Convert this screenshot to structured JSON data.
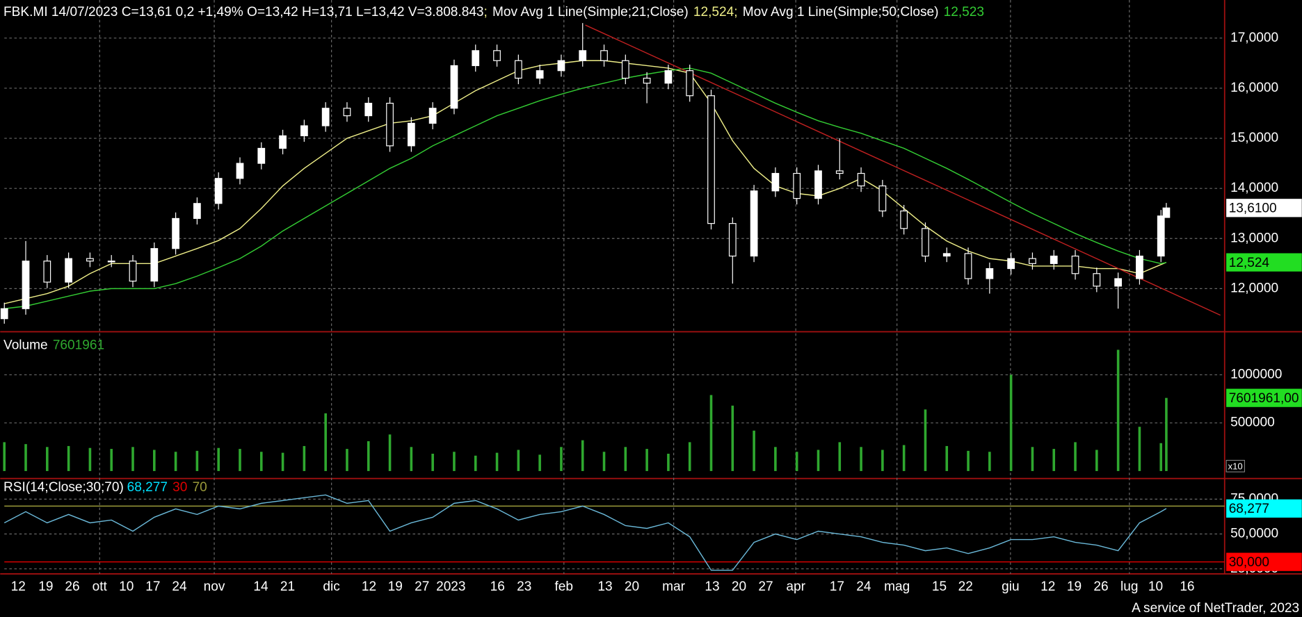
{
  "chart_data": {
    "type": "candlestick",
    "title": "FBK.MI 14/07/2023 C=13,61 0,2 +1,49% O=13,42 H=13,71 L=13,42 V=3.808.843",
    "separator": ";",
    "x": [
      0,
      4,
      8,
      12,
      16,
      20,
      24,
      28,
      32,
      36,
      40,
      44,
      48,
      52,
      56,
      60,
      64,
      68,
      72,
      76,
      80,
      84,
      88,
      92,
      96,
      100,
      104,
      108,
      112,
      116,
      120,
      124,
      128,
      132,
      136,
      140,
      144,
      148,
      152,
      156,
      160,
      164,
      168,
      172,
      176,
      180,
      184,
      188,
      192,
      196,
      200,
      204,
      208,
      212,
      216,
      217
    ],
    "open": [
      11.4,
      11.6,
      12.55,
      12.13,
      12.6,
      12.55,
      12.55,
      12.15,
      12.8,
      13.4,
      13.7,
      14.2,
      14.5,
      14.8,
      15.05,
      15.25,
      15.6,
      15.45,
      15.7,
      14.85,
      15.3,
      15.6,
      16.45,
      16.75,
      16.55,
      16.2,
      16.35,
      16.55,
      16.75,
      16.55,
      16.2,
      16.1,
      16.35,
      15.85,
      13.3,
      12.65,
      13.95,
      14.3,
      13.8,
      14.35,
      14.3,
      14.05,
      13.55,
      13.2,
      12.65,
      12.7,
      12.2,
      12.4,
      12.6,
      12.5,
      12.65,
      12.3,
      12.05,
      12.2,
      12.65,
      13.42
    ],
    "high": [
      11.72,
      12.95,
      12.67,
      12.72,
      12.72,
      12.67,
      12.67,
      12.92,
      13.52,
      13.82,
      14.32,
      14.62,
      14.92,
      15.17,
      15.37,
      15.72,
      15.72,
      15.82,
      15.82,
      15.42,
      15.72,
      16.57,
      16.87,
      16.87,
      16.67,
      16.47,
      16.67,
      17.3,
      16.87,
      16.67,
      16.32,
      16.47,
      16.47,
      15.97,
      13.42,
      14.07,
      14.42,
      14.42,
      14.47,
      15.0,
      14.42,
      14.17,
      13.67,
      13.32,
      12.82,
      12.82,
      12.52,
      12.72,
      12.72,
      12.77,
      12.77,
      12.42,
      12.32,
      12.77,
      13.57,
      13.71
    ],
    "low": [
      11.3,
      11.48,
      12.01,
      12.01,
      12.43,
      12.43,
      12.03,
      12.03,
      12.68,
      13.28,
      13.58,
      14.08,
      14.38,
      14.68,
      14.93,
      15.13,
      15.33,
      15.33,
      14.73,
      14.73,
      15.18,
      15.48,
      16.33,
      16.43,
      16.08,
      16.08,
      16.23,
      16.43,
      16.43,
      16.08,
      15.7,
      15.98,
      15.73,
      13.18,
      12.1,
      12.53,
      13.83,
      13.68,
      13.68,
      14.18,
      13.93,
      13.43,
      13.08,
      12.53,
      12.53,
      12.08,
      11.9,
      12.28,
      12.38,
      12.38,
      12.18,
      11.93,
      11.6,
      12.08,
      12.53,
      13.42
    ],
    "close": [
      11.6,
      12.55,
      12.13,
      12.6,
      12.55,
      12.55,
      12.15,
      12.8,
      13.4,
      13.7,
      14.2,
      14.5,
      14.8,
      15.05,
      15.25,
      15.6,
      15.45,
      15.7,
      14.85,
      15.3,
      15.6,
      16.45,
      16.75,
      16.55,
      16.2,
      16.35,
      16.55,
      16.75,
      16.55,
      16.2,
      16.1,
      16.35,
      15.85,
      13.3,
      12.65,
      13.95,
      14.3,
      13.8,
      14.35,
      14.3,
      14.05,
      13.55,
      13.2,
      12.65,
      12.7,
      12.2,
      12.4,
      12.6,
      12.5,
      12.65,
      12.3,
      12.05,
      12.2,
      12.65,
      13.45,
      13.61
    ],
    "up_color": "#ffffff",
    "down_color": "#000000",
    "last_label": "13,6100",
    "series": [
      {
        "name": "Mov Avg 1 Line(Simple;21;Close)",
        "color": "#eeee88",
        "value_label": "12,524",
        "values": [
          11.7,
          11.8,
          11.9,
          12.05,
          12.3,
          12.5,
          12.5,
          12.5,
          12.65,
          12.8,
          12.96,
          13.2,
          13.6,
          14.05,
          14.4,
          14.7,
          15.0,
          15.15,
          15.3,
          15.35,
          15.45,
          15.7,
          15.95,
          16.15,
          16.35,
          16.45,
          16.5,
          16.55,
          16.55,
          16.5,
          16.45,
          16.4,
          16.3,
          15.7,
          14.95,
          14.4,
          14.05,
          13.9,
          13.85,
          14.0,
          14.2,
          13.95,
          13.6,
          13.25,
          12.95,
          12.75,
          12.6,
          12.55,
          12.45,
          12.45,
          12.45,
          12.4,
          12.4,
          12.3,
          12.48,
          12.524
        ]
      },
      {
        "name": "Mov Avg 1 Line(Simple;50;Close)",
        "color": "#33cc33",
        "value_label": "12,523",
        "values": [
          11.6,
          11.65,
          11.75,
          11.85,
          11.95,
          12.0,
          12.0,
          12.0,
          12.1,
          12.25,
          12.42,
          12.6,
          12.85,
          13.15,
          13.4,
          13.65,
          13.9,
          14.15,
          14.4,
          14.6,
          14.85,
          15.05,
          15.25,
          15.45,
          15.6,
          15.75,
          15.88,
          16.0,
          16.1,
          16.2,
          16.28,
          16.35,
          16.4,
          16.3,
          16.1,
          15.9,
          15.7,
          15.52,
          15.35,
          15.22,
          15.1,
          14.95,
          14.8,
          14.6,
          14.4,
          14.18,
          13.95,
          13.72,
          13.5,
          13.3,
          13.1,
          12.92,
          12.75,
          12.6,
          12.5,
          12.523
        ]
      }
    ],
    "trendline": {
      "color": "#c02020",
      "x": [
        108.5,
        227.1
      ],
      "values": [
        17.26,
        11.47
      ]
    },
    "xlim": [
      0,
      227.5
    ],
    "ylim": [
      11.14,
      17.76
    ],
    "yticks": [
      {
        "value": 12,
        "label": "12,0000"
      },
      {
        "value": 13,
        "label": "13,0000"
      },
      {
        "value": 14,
        "label": "14,0000"
      },
      {
        "value": 15,
        "label": "15,0000"
      },
      {
        "value": 16,
        "label": "16,0000"
      },
      {
        "value": 17,
        "label": "17,0000"
      }
    ],
    "xticks": [
      {
        "value": 2.6,
        "label": "12"
      },
      {
        "value": 7.75,
        "label": "19"
      },
      {
        "value": 12.7,
        "label": "26"
      },
      {
        "value": 17.8,
        "label": "ott"
      },
      {
        "value": 22.8,
        "label": "10"
      },
      {
        "value": 27.75,
        "label": "17"
      },
      {
        "value": 32.7,
        "label": "24"
      },
      {
        "value": 39.2,
        "label": "nov"
      },
      {
        "value": 47.9,
        "label": "14"
      },
      {
        "value": 52.9,
        "label": "21"
      },
      {
        "value": 61.1,
        "label": "dic"
      },
      {
        "value": 68.1,
        "label": "12"
      },
      {
        "value": 73.0,
        "label": "19"
      },
      {
        "value": 78.0,
        "label": "27"
      },
      {
        "value": 83.4,
        "label": "2023"
      },
      {
        "value": 92.1,
        "label": "16"
      },
      {
        "value": 97.1,
        "label": "23"
      },
      {
        "value": 104.5,
        "label": "feb"
      },
      {
        "value": 112.2,
        "label": "13"
      },
      {
        "value": 117.2,
        "label": "20"
      },
      {
        "value": 125.0,
        "label": "mar"
      },
      {
        "value": 132.2,
        "label": "13"
      },
      {
        "value": 137.2,
        "label": "20"
      },
      {
        "value": 142.2,
        "label": "27"
      },
      {
        "value": 147.8,
        "label": "apr"
      },
      {
        "value": 155.5,
        "label": "17"
      },
      {
        "value": 160.5,
        "label": "24"
      },
      {
        "value": 166.7,
        "label": "mag"
      },
      {
        "value": 174.6,
        "label": "15"
      },
      {
        "value": 179.5,
        "label": "22"
      },
      {
        "value": 187.9,
        "label": "giu"
      },
      {
        "value": 194.9,
        "label": "12"
      },
      {
        "value": 199.8,
        "label": "19"
      },
      {
        "value": 204.8,
        "label": "26"
      },
      {
        "value": 210.1,
        "label": "lug"
      },
      {
        "value": 215.0,
        "label": "10"
      },
      {
        "value": 220.9,
        "label": "16"
      }
    ],
    "grid": true,
    "volume": {
      "label": "Volume",
      "value_label": "7601961",
      "box_label": "7601961,00",
      "scale_label": "x10",
      "color": "#2fa82f",
      "values": [
        300000,
        280000,
        250000,
        260000,
        240000,
        230000,
        250000,
        220000,
        200000,
        210000,
        240000,
        230000,
        200000,
        190000,
        260000,
        600000,
        230000,
        310000,
        380000,
        250000,
        180000,
        200000,
        160000,
        190000,
        220000,
        170000,
        250000,
        320000,
        200000,
        250000,
        230000,
        180000,
        300000,
        790000,
        680000,
        420000,
        250000,
        200000,
        220000,
        300000,
        250000,
        220000,
        270000,
        640000,
        260000,
        210000,
        200000,
        1000000,
        250000,
        230000,
        300000,
        220000,
        1260000,
        460000,
        290000,
        760196
      ],
      "ylim": [
        0,
        1448000
      ],
      "yticks": [
        500000,
        1000000
      ]
    },
    "rsi": {
      "label": "RSI(14;Close;30;70)",
      "value_label": "68,277",
      "color": "#6ab8d8",
      "values": [
        58,
        66,
        58,
        64,
        58,
        60,
        52,
        62,
        68,
        64,
        70,
        68,
        72,
        74,
        76,
        78,
        72,
        74,
        52,
        58,
        62,
        72,
        74,
        68,
        60,
        64,
        66,
        70,
        64,
        56,
        54,
        58,
        48,
        24,
        24,
        44,
        50,
        46,
        52,
        50,
        48,
        44,
        42,
        38,
        40,
        36,
        40,
        46,
        46,
        48,
        44,
        42,
        38,
        58,
        66,
        68.277
      ],
      "ylim": [
        21.4,
        88
      ],
      "yticks": [
        {
          "value": 25,
          "label": "25,0000"
        },
        {
          "value": 50,
          "label": "50,0000"
        },
        {
          "value": 75,
          "label": "75,0000"
        }
      ],
      "levels": [
        {
          "value": 30,
          "label": "30,000",
          "color": "#e00000"
        },
        {
          "value": 70,
          "label": "70,000",
          "color": "#9a9a3a"
        }
      ]
    },
    "footer": "A service of NetTrader, 2023"
  }
}
